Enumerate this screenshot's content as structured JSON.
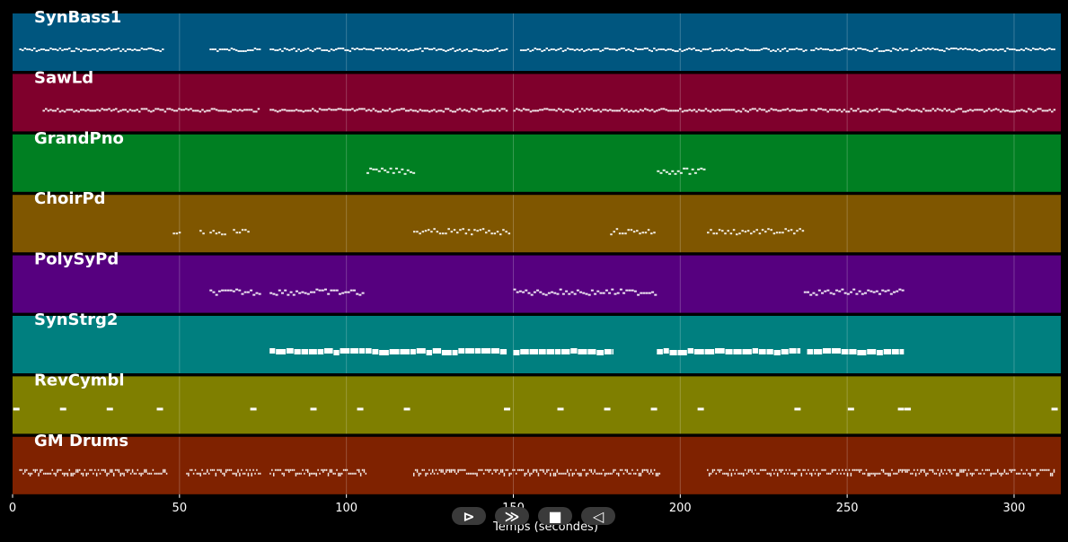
{
  "chart_data": {
    "type": "piano-roll",
    "xlabel": "Temps (secondes)",
    "xlim": [
      0,
      314
    ],
    "xticks": [
      0,
      50,
      100,
      150,
      200,
      250,
      300
    ],
    "grid": true,
    "tracks": [
      {
        "name": "SynBass1",
        "color": "#00567f",
        "style": "dense",
        "segments": [
          [
            2,
            45
          ],
          [
            59,
            74
          ],
          [
            77,
            148
          ],
          [
            152,
            238
          ],
          [
            239,
            268
          ],
          [
            269,
            312
          ]
        ]
      },
      {
        "name": "SawLd",
        "color": "#7f002c",
        "style": "dense",
        "segments": [
          [
            9,
            74
          ],
          [
            77,
            148
          ],
          [
            150,
            238
          ],
          [
            239,
            312
          ]
        ]
      },
      {
        "name": "GrandPno",
        "color": "#007f22",
        "style": "phrase",
        "segments": [
          [
            106,
            120
          ],
          [
            193,
            207
          ]
        ]
      },
      {
        "name": "ChoirPd",
        "color": "#7f5600",
        "style": "sparse",
        "segments": [
          [
            48,
            50
          ],
          [
            56,
            57
          ],
          [
            59,
            64
          ],
          [
            66,
            71
          ],
          [
            120,
            149
          ],
          [
            179,
            192
          ],
          [
            208,
            237
          ]
        ]
      },
      {
        "name": "PolySyPd",
        "color": "#56007f",
        "style": "phrase",
        "segments": [
          [
            59,
            74
          ],
          [
            77,
            105
          ],
          [
            150,
            193
          ],
          [
            237,
            267
          ]
        ]
      },
      {
        "name": "SynStrg2",
        "color": "#007f7f",
        "style": "block",
        "segments": [
          [
            77,
            148
          ],
          [
            150,
            180
          ],
          [
            193,
            236
          ],
          [
            238,
            267
          ]
        ]
      },
      {
        "name": "RevCymbl",
        "color": "#7f7f00",
        "style": "hits",
        "hits": [
          1,
          15,
          29,
          44,
          72,
          90,
          104,
          118,
          148,
          164,
          178,
          192,
          206,
          235,
          251,
          266,
          268,
          312
        ]
      },
      {
        "name": "GM Drums",
        "color": "#7f2200",
        "style": "drums",
        "segments": [
          [
            2,
            46
          ],
          [
            52,
            74
          ],
          [
            77,
            106
          ],
          [
            120,
            194
          ],
          [
            208,
            312
          ]
        ]
      }
    ]
  },
  "controls": {
    "play_symbol": "⊳",
    "next_symbol": "≫",
    "stop_symbol": "■",
    "prev_symbol": "◁"
  }
}
